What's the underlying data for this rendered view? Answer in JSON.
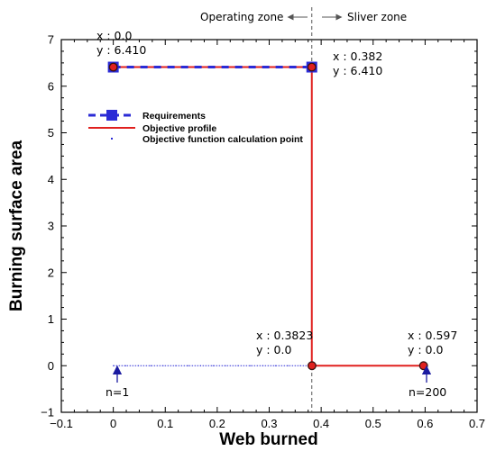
{
  "chart_data": {
    "type": "line",
    "title": "",
    "xlabel": "Web burned",
    "ylabel": "Burning surface area",
    "xlim": [
      -0.1,
      0.7
    ],
    "ylim": [
      -1,
      7
    ],
    "x_ticks": [
      -0.1,
      0,
      0.1,
      0.2,
      0.3,
      0.4,
      0.5,
      0.6,
      0.7
    ],
    "y_ticks": [
      -1,
      0,
      1,
      2,
      3,
      4,
      5,
      6,
      7
    ],
    "x_tick_labels": [
      "−0.1",
      "0",
      "0.1",
      "0.2",
      "0.3",
      "0.4",
      "0.5",
      "0.6",
      "0.7"
    ],
    "y_tick_labels": [
      "−1",
      "0",
      "1",
      "2",
      "3",
      "4",
      "5",
      "6",
      "7"
    ],
    "grid": false,
    "legend": {
      "position": "upper-left",
      "entries": [
        "Requirements",
        "Objective profile",
        "Objective function calculation point"
      ]
    },
    "series": [
      {
        "name": "Requirements",
        "color": "#2b2bd6",
        "x": [
          0.0,
          0.382
        ],
        "y": [
          6.41,
          6.41
        ]
      },
      {
        "name": "Objective profile",
        "color": "#e0201e",
        "x": [
          0.0,
          0.382,
          0.382,
          0.597
        ],
        "y": [
          6.41,
          6.41,
          0.0,
          0.0
        ]
      },
      {
        "name": "Objective function calculation point",
        "color": "#2b2bd6",
        "x": [
          0.0,
          0.3823
        ],
        "y": [
          0.0,
          0.0
        ]
      }
    ],
    "key_points": [
      {
        "x": 0.0,
        "y": 6.41
      },
      {
        "x": 0.382,
        "y": 6.41
      },
      {
        "x": 0.3823,
        "y": 0.0
      },
      {
        "x": 0.597,
        "y": 0.0
      }
    ],
    "zone_divider_x": 0.382,
    "annotations": {
      "p1_x": "x : 0.0",
      "p1_y": "y : 6.410",
      "p2_x": "x : 0.382",
      "p2_y": "y : 6.410",
      "p3_x": "x : 0.3823",
      "p3_y": "y : 0.0",
      "p4_x": "x : 0.597",
      "p4_y": "y : 0.0",
      "n_first": "n=1",
      "n_last": "n=200",
      "zone_left": "Operating zone",
      "zone_right": "Sliver zone"
    }
  }
}
